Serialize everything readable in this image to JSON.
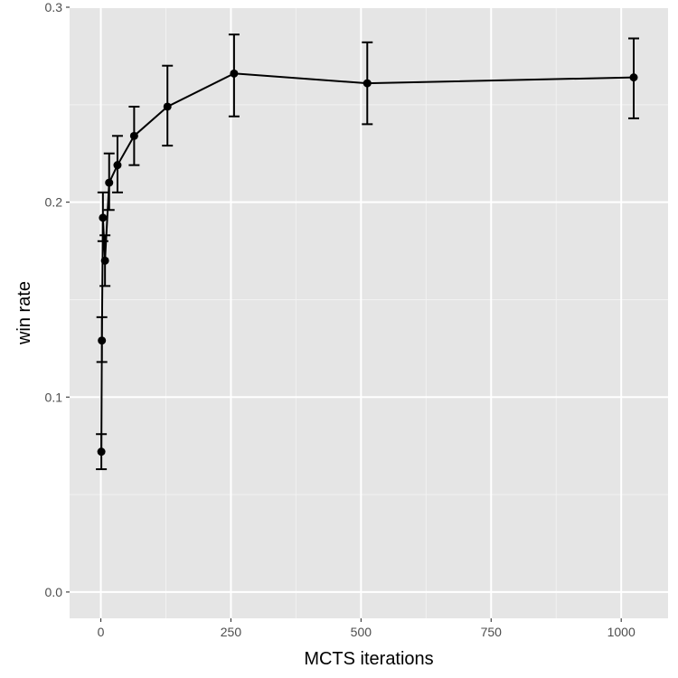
{
  "chart_data": {
    "type": "line",
    "title": "",
    "xlabel": "MCTS iterations",
    "ylabel": "win rate",
    "xlim": [
      -60,
      1090
    ],
    "ylim": [
      -0.0135,
      0.3
    ],
    "x_ticks": [
      0,
      250,
      500,
      750,
      1000
    ],
    "x_tick_labels": [
      "0",
      "250",
      "500",
      "750",
      "1000"
    ],
    "y_ticks": [
      0.0,
      0.1,
      0.2,
      0.3
    ],
    "y_tick_labels": [
      "0.0",
      "0.1",
      "0.2",
      "0.3"
    ],
    "grid": true,
    "legend": "none",
    "series": [
      {
        "x": [
          1,
          2,
          4,
          8,
          16,
          32,
          64,
          128,
          256,
          512,
          1024
        ],
        "y": [
          0.072,
          0.129,
          0.192,
          0.17,
          0.21,
          0.219,
          0.234,
          0.249,
          0.266,
          0.261,
          0.264
        ],
        "ymin": [
          0.063,
          0.118,
          0.18,
          0.157,
          0.196,
          0.205,
          0.219,
          0.229,
          0.244,
          0.24,
          0.243
        ],
        "ymax": [
          0.081,
          0.141,
          0.205,
          0.183,
          0.225,
          0.234,
          0.249,
          0.27,
          0.286,
          0.282,
          0.284
        ]
      }
    ]
  },
  "colors": {
    "panel": "#e5e5e5",
    "grid_major": "#ffffff",
    "grid_minor": "#f2f2f2",
    "series": "#000000",
    "tick_text": "#4d4d4d"
  }
}
